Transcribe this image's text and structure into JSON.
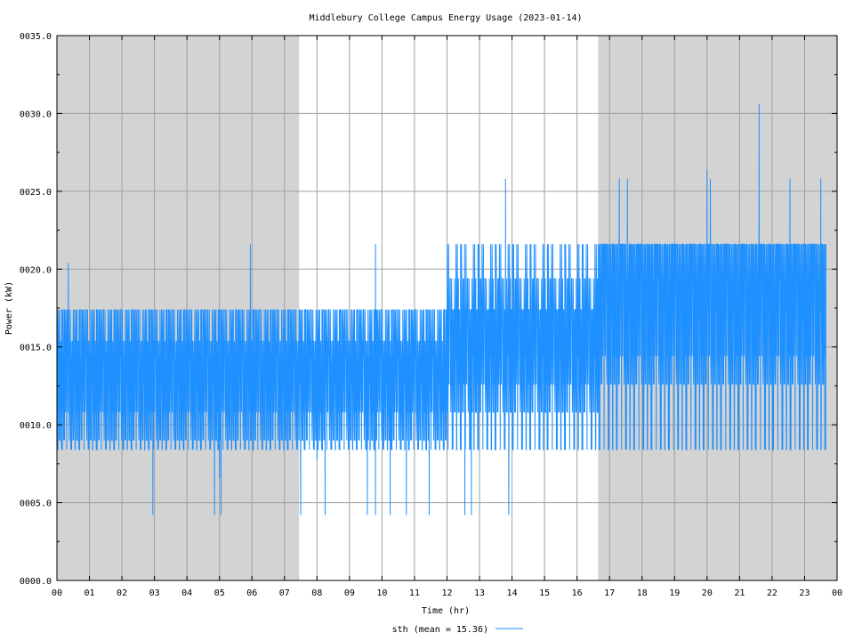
{
  "chart_data": {
    "type": "line",
    "title": "Middlebury College Campus Energy Usage (2023-01-14)",
    "xlabel": "Time (hr)",
    "ylabel": "Power (kW)",
    "xlim": [
      0,
      24
    ],
    "ylim": [
      0,
      35
    ],
    "x_ticks": [
      0,
      1,
      2,
      3,
      4,
      5,
      6,
      7,
      8,
      9,
      10,
      11,
      12,
      13,
      14,
      15,
      16,
      17,
      18,
      19,
      20,
      21,
      22,
      23,
      24
    ],
    "x_tick_labels": [
      "00",
      "01",
      "02",
      "03",
      "04",
      "05",
      "06",
      "07",
      "08",
      "09",
      "10",
      "11",
      "12",
      "13",
      "14",
      "15",
      "16",
      "17",
      "18",
      "19",
      "20",
      "21",
      "22",
      "23",
      "00"
    ],
    "y_ticks": [
      0,
      5,
      10,
      15,
      20,
      25,
      30,
      35
    ],
    "y_tick_labels": [
      "0000.0",
      "0005.0",
      "0010.0",
      "0015.0",
      "0020.0",
      "0025.0",
      "0030.0",
      "0035.0"
    ],
    "grid": true,
    "shaded_periods": [
      [
        0,
        7.45
      ],
      [
        16.65,
        24
      ]
    ],
    "legend_position": "bottom-center",
    "series": [
      {
        "name": "sth (mean = 15.36)",
        "color": "#1e90ff",
        "x_start": 0,
        "x_step": 0.0167,
        "levels": [
          8.4,
          9.0,
          10.8,
          12.6,
          14.4,
          17.4,
          19.4,
          21.6
        ],
        "level_pattern": [
          3,
          5,
          0,
          7,
          2,
          6,
          1,
          5,
          3,
          7,
          0,
          6,
          2,
          4,
          1,
          5,
          3,
          5,
          0,
          7,
          2,
          4,
          6,
          1,
          5,
          3,
          5,
          0,
          4,
          2,
          6,
          1
        ],
        "segments": [
          {
            "x_start": 0,
            "x_end": 7.45,
            "levels": [
              8.4,
              9.0,
              10.8,
              12.6,
              14.4,
              15.4,
              17.4,
              17.4
            ]
          },
          {
            "x_start": 7.45,
            "x_end": 12.0,
            "levels": [
              8.4,
              9.0,
              10.8,
              12.6,
              14.4,
              15.4,
              17.4,
              17.4
            ]
          },
          {
            "x_start": 12.0,
            "x_end": 16.65,
            "levels": [
              8.4,
              10.8,
              12.6,
              14.4,
              17.4,
              17.4,
              19.4,
              21.6
            ]
          },
          {
            "x_start": 16.65,
            "x_end": 23.65,
            "levels": [
              8.4,
              12.6,
              14.4,
              17.4,
              19.4,
              21.6,
              21.6,
              21.6
            ]
          }
        ],
        "spikes": [
          {
            "x": 0.35,
            "y": 20.4
          },
          {
            "x": 2.95,
            "y": 4.2
          },
          {
            "x": 5.95,
            "y": 21.6
          },
          {
            "x": 4.85,
            "y": 4.2
          },
          {
            "x": 5.05,
            "y": 4.2
          },
          {
            "x": 5.0,
            "y": 6.6
          },
          {
            "x": 7.5,
            "y": 4.2
          },
          {
            "x": 8.0,
            "y": 7.8
          },
          {
            "x": 8.25,
            "y": 4.2
          },
          {
            "x": 9.55,
            "y": 4.2
          },
          {
            "x": 9.8,
            "y": 4.2
          },
          {
            "x": 9.8,
            "y": 21.6
          },
          {
            "x": 10.25,
            "y": 4.2
          },
          {
            "x": 10.75,
            "y": 4.2
          },
          {
            "x": 11.45,
            "y": 4.2
          },
          {
            "x": 12.55,
            "y": 4.2
          },
          {
            "x": 12.75,
            "y": 4.2
          },
          {
            "x": 13.8,
            "y": 25.8
          },
          {
            "x": 13.9,
            "y": 4.2
          },
          {
            "x": 17.3,
            "y": 25.8
          },
          {
            "x": 17.55,
            "y": 25.8
          },
          {
            "x": 20.0,
            "y": 26.4
          },
          {
            "x": 20.1,
            "y": 25.8
          },
          {
            "x": 21.6,
            "y": 30.6
          },
          {
            "x": 22.55,
            "y": 25.8
          },
          {
            "x": 23.5,
            "y": 25.8
          }
        ]
      }
    ]
  }
}
